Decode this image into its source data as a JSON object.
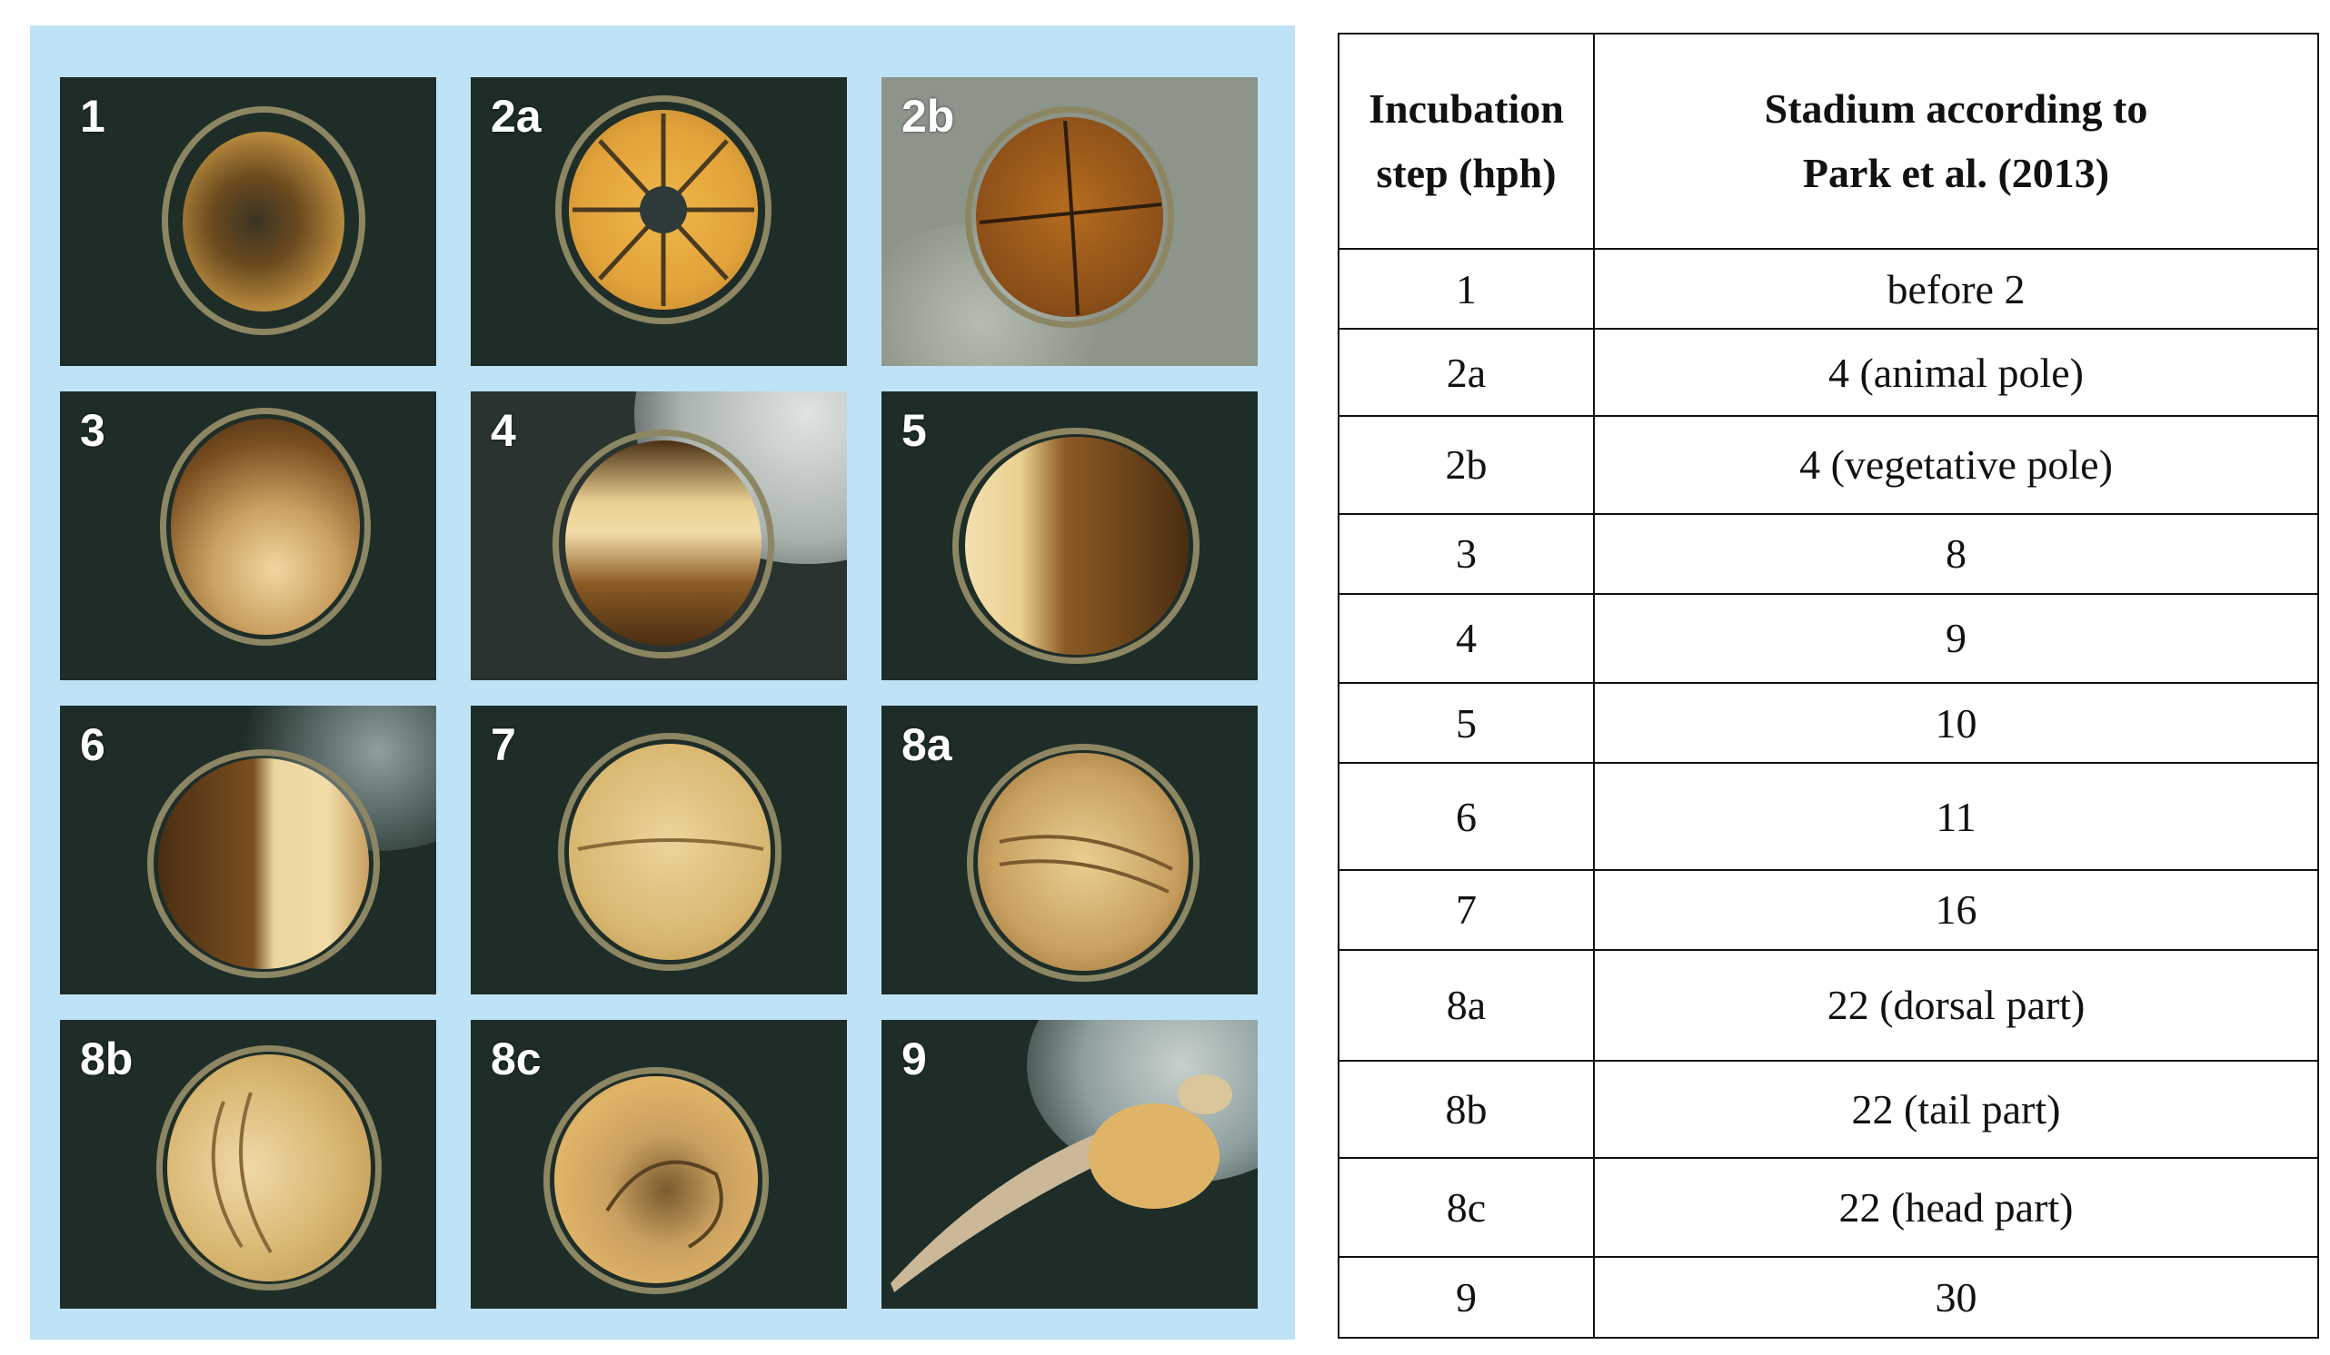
{
  "figure": {
    "panels": [
      {
        "label": "1"
      },
      {
        "label": "2a"
      },
      {
        "label": "2b"
      },
      {
        "label": "3"
      },
      {
        "label": "4"
      },
      {
        "label": "5"
      },
      {
        "label": "6"
      },
      {
        "label": "7"
      },
      {
        "label": "8a"
      },
      {
        "label": "8b"
      },
      {
        "label": "8c"
      },
      {
        "label": "9"
      }
    ]
  },
  "table": {
    "headers": {
      "col1_line1": "Incubation",
      "col1_line2": "step (hph)",
      "col2_line1": "Stadium according to",
      "col2_line2": "Park et al. (2013)"
    },
    "rows": [
      {
        "step": "1",
        "stadium": "before 2"
      },
      {
        "step": "2a",
        "stadium": "4 (animal pole)"
      },
      {
        "step": "2b",
        "stadium": "4 (vegetative pole)"
      },
      {
        "step": "3",
        "stadium": "8"
      },
      {
        "step": "4",
        "stadium": "9"
      },
      {
        "step": "5",
        "stadium": "10"
      },
      {
        "step": "6",
        "stadium": "11"
      },
      {
        "step": "7",
        "stadium": "16"
      },
      {
        "step": "8a",
        "stadium": "22 (dorsal part)"
      },
      {
        "step": "8b",
        "stadium": "22 (tail part)"
      },
      {
        "step": "8c",
        "stadium": "22 (head part)"
      },
      {
        "step": "9",
        "stadium": "30"
      }
    ]
  }
}
